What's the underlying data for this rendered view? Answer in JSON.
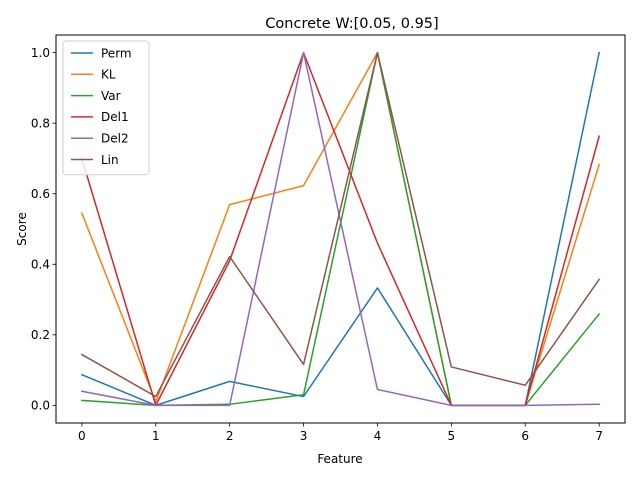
{
  "chart_data": {
    "type": "line",
    "title": "Concrete W:[0.05, 0.95]",
    "xlabel": "Feature",
    "ylabel": "Score",
    "x": [
      0,
      1,
      2,
      3,
      4,
      5,
      6,
      7
    ],
    "xlim": [
      -0.35,
      7.35
    ],
    "ylim": [
      -0.05,
      1.05
    ],
    "xticks": [
      "0",
      "1",
      "2",
      "3",
      "4",
      "5",
      "6",
      "7"
    ],
    "yticks": [
      "0.0",
      "0.2",
      "0.4",
      "0.6",
      "0.8",
      "1.0"
    ],
    "grid": false,
    "legend_position": "upper-left",
    "series": [
      {
        "name": "Perm",
        "color": "#1f77b4",
        "values": [
          0.087,
          0.0,
          0.068,
          0.025,
          0.333,
          0.0,
          0.0,
          1.0
        ]
      },
      {
        "name": "KL",
        "color": "#ff7f0e",
        "values": [
          0.545,
          0.01,
          0.569,
          0.623,
          1.0,
          0.0,
          0.0,
          0.683
        ]
      },
      {
        "name": "Var",
        "color": "#2ca02c",
        "values": [
          0.014,
          0.0,
          0.003,
          0.03,
          1.0,
          0.0,
          0.0,
          0.259
        ]
      },
      {
        "name": "Del1",
        "color": "#d62728",
        "values": [
          0.7,
          0.0,
          0.41,
          1.0,
          0.46,
          0.0,
          0.0,
          0.763
        ]
      },
      {
        "name": "Del2",
        "color": "#9467bd",
        "values": [
          0.04,
          0.0,
          0.0,
          1.0,
          0.045,
          0.0,
          0.0,
          0.003
        ]
      },
      {
        "name": "Lin",
        "color": "#8c564b",
        "values": [
          0.144,
          0.025,
          0.422,
          0.116,
          1.0,
          0.109,
          0.057,
          0.357
        ]
      }
    ]
  }
}
